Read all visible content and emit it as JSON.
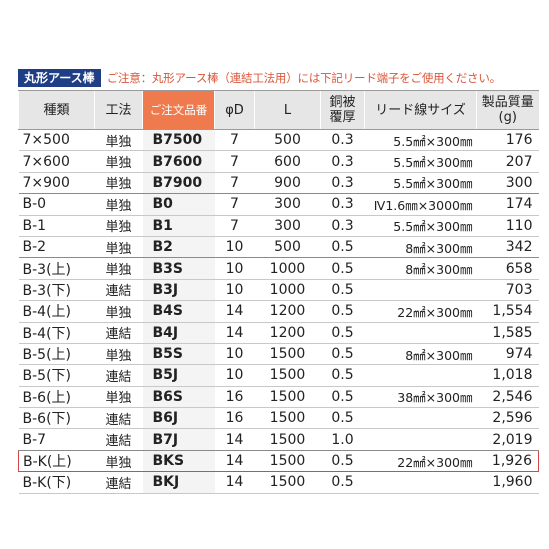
{
  "title": "丸形アース棒",
  "notice": "ご注意：丸形アース棒（連結工法用）には下記リード端子をご使用ください。",
  "headers": {
    "type": "種類",
    "method": "工法",
    "order": "ご注文品番",
    "phi": "φD",
    "length": "L",
    "copper_1": "銅被",
    "copper_2": "覆厚",
    "lead": "リード線サイズ",
    "mass_1": "製品質量",
    "mass_2": "(g)"
  },
  "rows": [
    {
      "type": "7×500",
      "method": "単独",
      "order": "B7500",
      "phi": "7",
      "length": "500",
      "copper": "0.3",
      "lead": "5.5㎟×300㎜",
      "mass": "176"
    },
    {
      "type": "7×600",
      "method": "単独",
      "order": "B7600",
      "phi": "7",
      "length": "600",
      "copper": "0.3",
      "lead": "5.5㎟×300㎜",
      "mass": "207"
    },
    {
      "type": "7×900",
      "method": "単独",
      "order": "B7900",
      "phi": "7",
      "length": "900",
      "copper": "0.3",
      "lead": "5.5㎟×300㎜",
      "mass": "300"
    },
    {
      "type": "B-0",
      "method": "単独",
      "order": "B0",
      "phi": "7",
      "length": "300",
      "copper": "0.3",
      "lead": "Ⅳ1.6㎜×3000㎜",
      "mass": "174"
    },
    {
      "type": "B-1",
      "method": "単独",
      "order": "B1",
      "phi": "7",
      "length": "300",
      "copper": "0.3",
      "lead": "5.5㎟×300㎜",
      "mass": "110"
    },
    {
      "type": "B-2",
      "method": "単独",
      "order": "B2",
      "phi": "10",
      "length": "500",
      "copper": "0.5",
      "lead": "8㎟×300㎜",
      "mass": "342"
    },
    {
      "type": "B-3(上)",
      "method": "単独",
      "order": "B3S",
      "phi": "10",
      "length": "1000",
      "copper": "0.5",
      "lead": "8㎟×300㎜",
      "mass": "658"
    },
    {
      "type": "B-3(下)",
      "method": "連結",
      "order": "B3J",
      "phi": "10",
      "length": "1000",
      "copper": "0.5",
      "lead": "",
      "mass": "703"
    },
    {
      "type": "B-4(上)",
      "method": "単独",
      "order": "B4S",
      "phi": "14",
      "length": "1200",
      "copper": "0.5",
      "lead": "22㎟×300㎜",
      "mass": "1,554"
    },
    {
      "type": "B-4(下)",
      "method": "連結",
      "order": "B4J",
      "phi": "14",
      "length": "1200",
      "copper": "0.5",
      "lead": "",
      "mass": "1,585"
    },
    {
      "type": "B-5(上)",
      "method": "単独",
      "order": "B5S",
      "phi": "10",
      "length": "1500",
      "copper": "0.5",
      "lead": "8㎟×300㎜",
      "mass": "974"
    },
    {
      "type": "B-5(下)",
      "method": "連結",
      "order": "B5J",
      "phi": "10",
      "length": "1500",
      "copper": "0.5",
      "lead": "",
      "mass": "1,018"
    },
    {
      "type": "B-6(上)",
      "method": "単独",
      "order": "B6S",
      "phi": "16",
      "length": "1500",
      "copper": "0.5",
      "lead": "38㎟×300㎜",
      "mass": "2,546"
    },
    {
      "type": "B-6(下)",
      "method": "連結",
      "order": "B6J",
      "phi": "16",
      "length": "1500",
      "copper": "0.5",
      "lead": "",
      "mass": "2,596"
    },
    {
      "type": "B-7",
      "method": "連結",
      "order": "B7J",
      "phi": "14",
      "length": "1500",
      "copper": "1.0",
      "lead": "",
      "mass": "2,019"
    },
    {
      "type": "B-K(上)",
      "method": "単独",
      "order": "BKS",
      "phi": "14",
      "length": "1500",
      "copper": "0.5",
      "lead": "22㎟×300㎜",
      "mass": "1,926"
    },
    {
      "type": "B-K(下)",
      "method": "連結",
      "order": "BKJ",
      "phi": "14",
      "length": "1500",
      "copper": "0.5",
      "lead": "",
      "mass": "1,960"
    }
  ],
  "highlight_color": "#d34848",
  "title_color": "#1f3e86",
  "notice_color": "#d9573b",
  "order_header_color": "#ef7a4e"
}
